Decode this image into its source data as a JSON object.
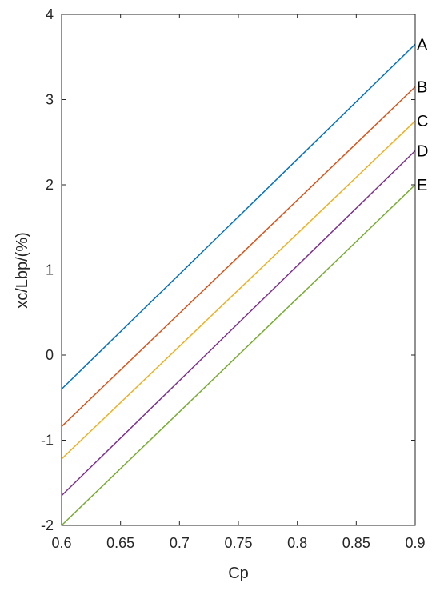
{
  "chart_data": {
    "type": "line",
    "title": "",
    "xlabel": "Cp",
    "ylabel": "xc/Lbp/(%)",
    "xlim": [
      0.6,
      0.9
    ],
    "ylim": [
      -2,
      4
    ],
    "x_ticks": [
      "0.6",
      "0.65",
      "0.7",
      "0.75",
      "0.8",
      "0.85",
      "0.9"
    ],
    "y_ticks": [
      "-2",
      "-1",
      "0",
      "1",
      "2",
      "3",
      "4"
    ],
    "grid": false,
    "series": [
      {
        "name": "A",
        "color": "#0072BD",
        "x": [
          0.6,
          0.9
        ],
        "y": [
          -0.4,
          3.65
        ]
      },
      {
        "name": "B",
        "color": "#D95319",
        "x": [
          0.6,
          0.9
        ],
        "y": [
          -0.84,
          3.15
        ]
      },
      {
        "name": "C",
        "color": "#EDB120",
        "x": [
          0.6,
          0.9
        ],
        "y": [
          -1.22,
          2.75
        ]
      },
      {
        "name": "D",
        "color": "#7E2F8E",
        "x": [
          0.6,
          0.9
        ],
        "y": [
          -1.65,
          2.4
        ]
      },
      {
        "name": "E",
        "color": "#77AC30",
        "x": [
          0.6,
          0.9
        ],
        "y": [
          -2.0,
          2.0
        ]
      }
    ]
  }
}
